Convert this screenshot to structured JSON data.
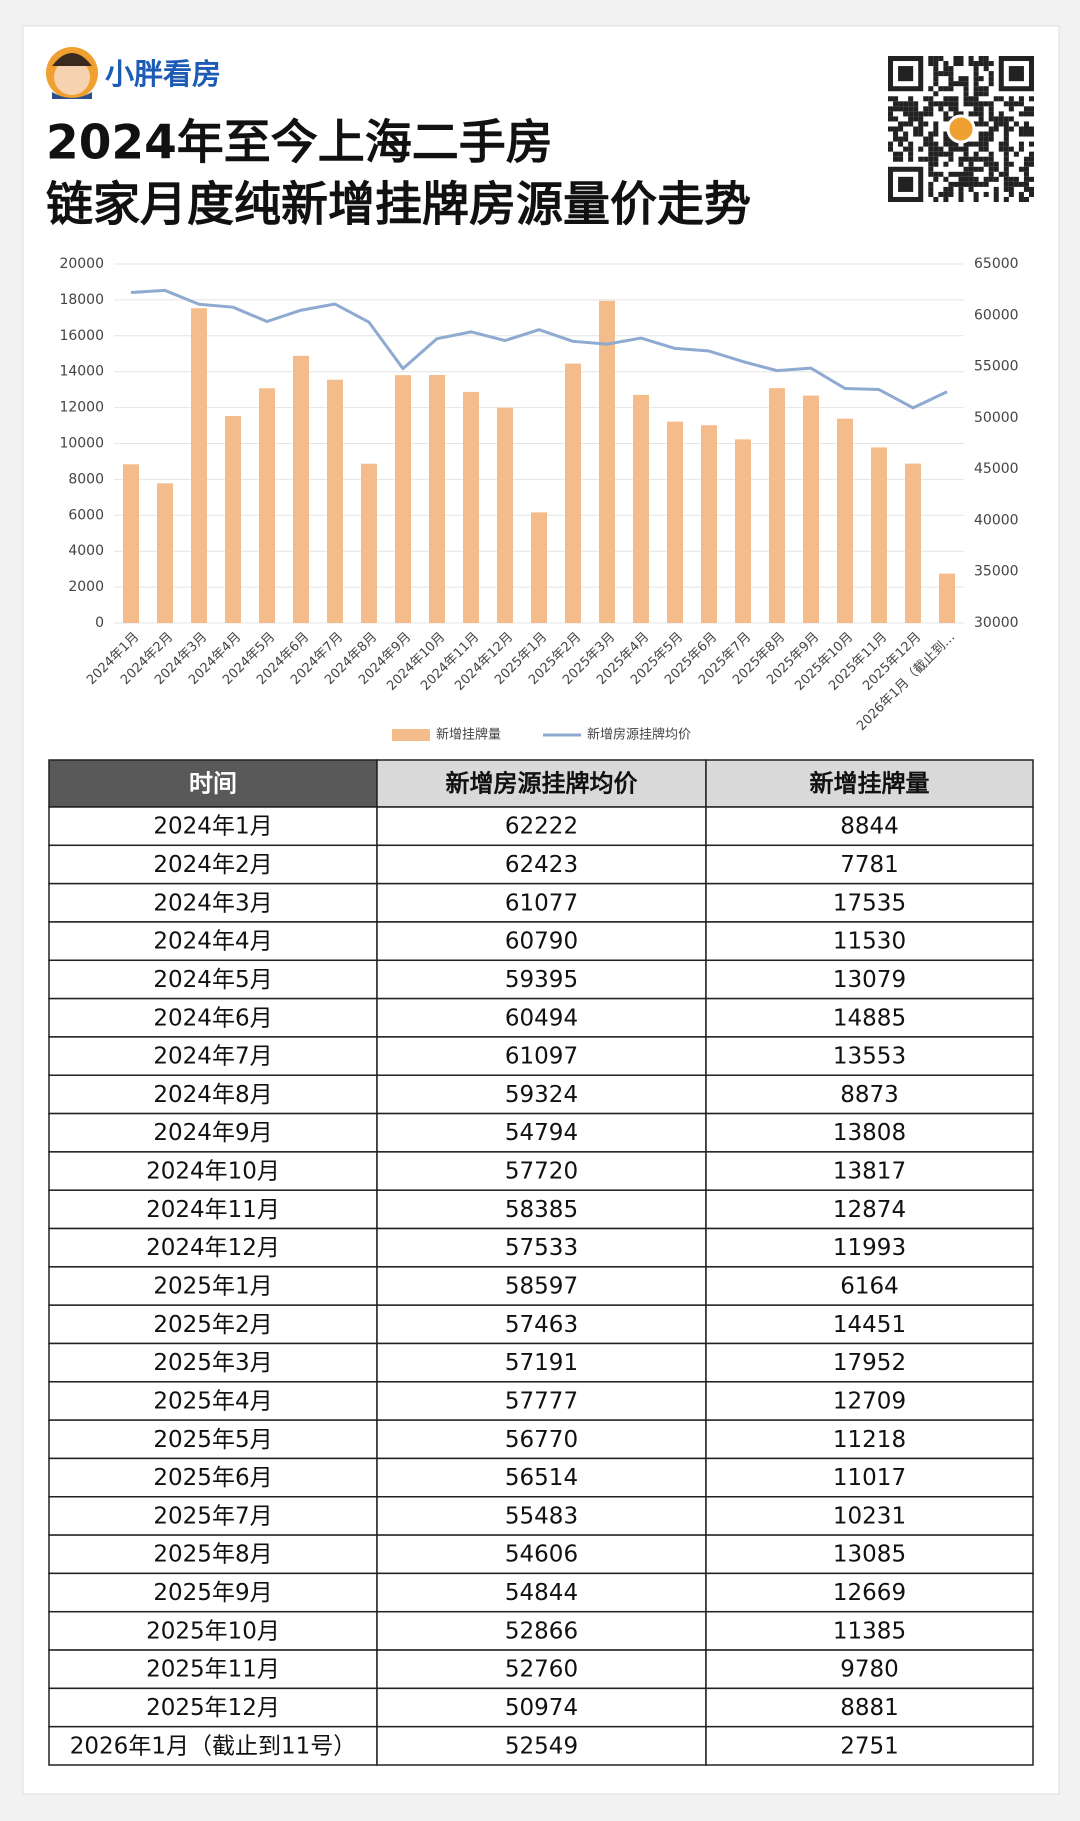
{
  "header": {
    "brand": "小胖看房",
    "title": [
      "2024年至今上海二手房",
      "链家月度纯新增挂牌房源量价走势"
    ]
  },
  "chart_data": {
    "type": "bar",
    "categories": [
      "2024年1月",
      "2024年2月",
      "2024年3月",
      "2024年4月",
      "2024年5月",
      "2024年6月",
      "2024年7月",
      "2024年8月",
      "2024年9月",
      "2024年10月",
      "2024年11月",
      "2024年12月",
      "2025年1月",
      "2025年2月",
      "2025年3月",
      "2025年4月",
      "2025年5月",
      "2025年6月",
      "2025年7月",
      "2025年8月",
      "2025年9月",
      "2025年10月",
      "2025年11月",
      "2025年12月",
      "2026年1月（截止到…"
    ],
    "series": [
      {
        "name": "新增挂牌量",
        "type": "bar",
        "color": "#f5bc8b",
        "values": [
          8844,
          7781,
          17535,
          11530,
          13079,
          14885,
          13553,
          8873,
          13808,
          13817,
          12874,
          11993,
          6164,
          14451,
          17952,
          12709,
          11218,
          11017,
          10231,
          13085,
          12669,
          11385,
          9780,
          8881,
          2751
        ]
      },
      {
        "name": "新增房源挂牌均价",
        "type": "line",
        "axis": "y2",
        "color": "#8eaad0",
        "values": [
          62222,
          62423,
          61077,
          60790,
          59395,
          60494,
          61097,
          59324,
          54794,
          57720,
          58385,
          57533,
          58597,
          57463,
          57191,
          57777,
          56770,
          56514,
          55483,
          54606,
          54844,
          52866,
          52760,
          50974,
          52549
        ]
      }
    ],
    "ylim": [
      0,
      20000
    ],
    "yticks": [
      0,
      2000,
      4000,
      6000,
      8000,
      10000,
      12000,
      14000,
      16000,
      18000,
      20000
    ],
    "y2lim": [
      30000,
      65000
    ],
    "y2ticks": [
      30000,
      35000,
      40000,
      45000,
      50000,
      55000,
      60000,
      65000
    ],
    "grid": true,
    "legend": "bottom"
  },
  "table": {
    "headers": [
      "时间",
      "新增房源挂牌均价",
      "新增挂牌量"
    ],
    "rows": [
      [
        "2024年1月",
        "62222",
        "8844"
      ],
      [
        "2024年2月",
        "62423",
        "7781"
      ],
      [
        "2024年3月",
        "61077",
        "17535"
      ],
      [
        "2024年4月",
        "60790",
        "11530"
      ],
      [
        "2024年5月",
        "59395",
        "13079"
      ],
      [
        "2024年6月",
        "60494",
        "14885"
      ],
      [
        "2024年7月",
        "61097",
        "13553"
      ],
      [
        "2024年8月",
        "59324",
        "8873"
      ],
      [
        "2024年9月",
        "54794",
        "13808"
      ],
      [
        "2024年10月",
        "57720",
        "13817"
      ],
      [
        "2024年11月",
        "58385",
        "12874"
      ],
      [
        "2024年12月",
        "57533",
        "11993"
      ],
      [
        "2025年1月",
        "58597",
        "6164"
      ],
      [
        "2025年2月",
        "57463",
        "14451"
      ],
      [
        "2025年3月",
        "57191",
        "17952"
      ],
      [
        "2025年4月",
        "57777",
        "12709"
      ],
      [
        "2025年5月",
        "56770",
        "11218"
      ],
      [
        "2025年6月",
        "56514",
        "11017"
      ],
      [
        "2025年7月",
        "55483",
        "10231"
      ],
      [
        "2025年8月",
        "54606",
        "13085"
      ],
      [
        "2025年9月",
        "54844",
        "12669"
      ],
      [
        "2025年10月",
        "52866",
        "11385"
      ],
      [
        "2025年11月",
        "52760",
        "9780"
      ],
      [
        "2025年12月",
        "50974",
        "8881"
      ],
      [
        "2026年1月（截止到11号）",
        "52549",
        "2751"
      ]
    ]
  }
}
